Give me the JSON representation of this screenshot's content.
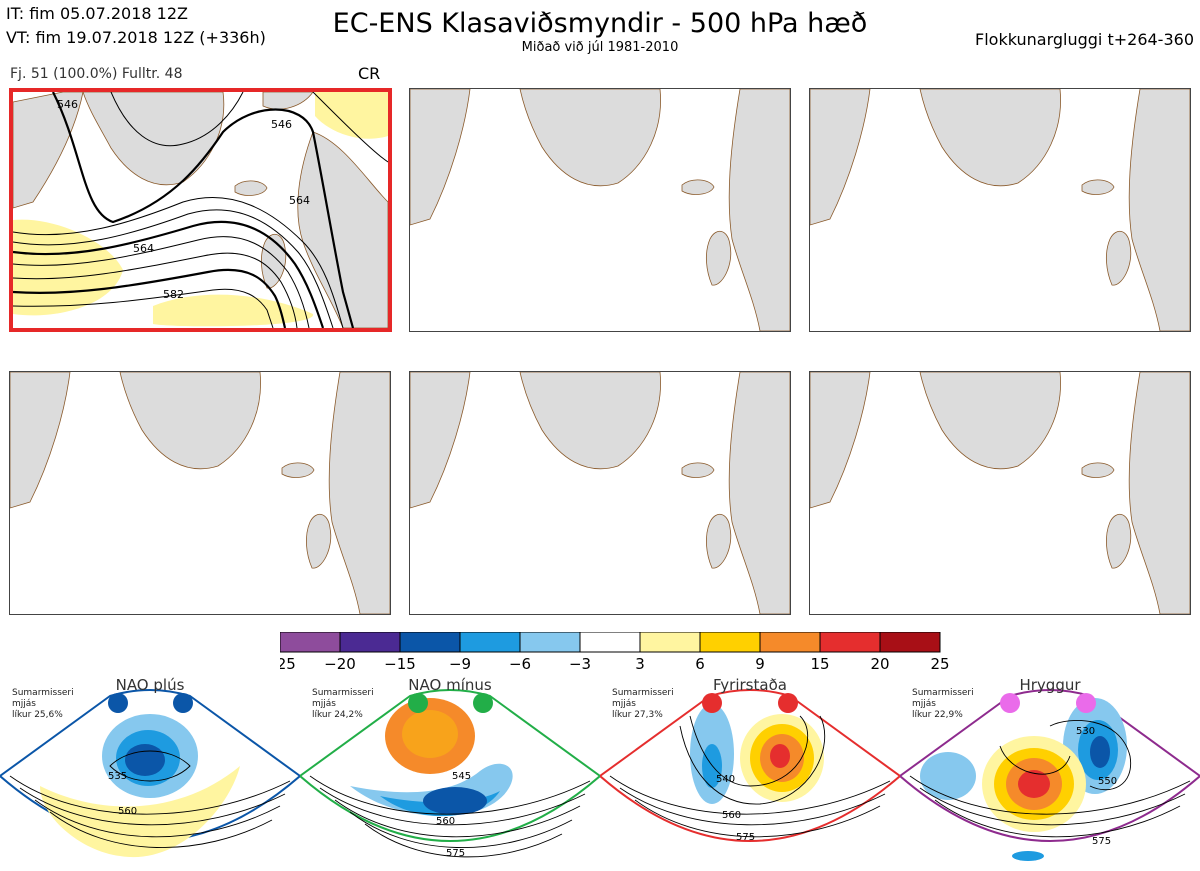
{
  "header": {
    "it_text": "IT: fim 05.07.2018 12Z",
    "vt_text": "VT: fim 19.07.2018 12Z  (+336h)",
    "title": "EC-ENS Klasaviðsmyndir - 500 hPa hæð",
    "subtitle": "Miðað við júl 1981-2010",
    "window_label": "Flokkunargluggi t+264-360"
  },
  "panel1": {
    "members_text": "Fj. 51 (100.0%)   Fulltr. 48",
    "cluster_label": "CR",
    "contour_labels": [
      "546",
      "564",
      "582",
      "546",
      "564"
    ]
  },
  "colors": {
    "land": "#dcdcdc",
    "coast": "#8a5a2b",
    "selected_frame": "#e62828",
    "scale": [
      "#8e4c9c",
      "#4b2a93",
      "#0b56a8",
      "#1e9be0",
      "#86c8ee",
      "#ffffff",
      "#fff5a0",
      "#ffd000",
      "#f58a2a",
      "#e52e2e",
      "#a80f16"
    ]
  },
  "colorbar": {
    "ticks": [
      "−25",
      "−20",
      "−15",
      "−9",
      "−6",
      "−3",
      "3",
      "6",
      "9",
      "15",
      "20",
      "25"
    ]
  },
  "regimes": [
    {
      "name": "NAO plús",
      "season": "Sumarmisseri",
      "type": "mjjás",
      "prob": "líkur 25,6%",
      "color": "#0b56a8",
      "labels": [
        "535",
        "560"
      ]
    },
    {
      "name": "NAO mínus",
      "season": "Sumarmisseri",
      "type": "mjjás",
      "prob": "líkur 24,2%",
      "color": "#22ae48",
      "labels": [
        "545",
        "560",
        "575"
      ]
    },
    {
      "name": "Fyrirstaða",
      "season": "Sumarmisseri",
      "type": "mjjás",
      "prob": "líkur 27,3%",
      "color": "#e52e2e",
      "labels": [
        "540",
        "560",
        "575"
      ]
    },
    {
      "name": "Hryggur",
      "season": "Sumarmisseri",
      "type": "mjjás",
      "prob": "líkur 22,9%",
      "color": "#8e2b8e",
      "labels": [
        "530",
        "550",
        "575"
      ]
    }
  ],
  "chart_data": {
    "type": "heatmap",
    "title": "EC-ENS Klasaviðsmyndir - 500 hPa hæð",
    "subtitle": "Miðað við júl 1981-2010",
    "colorbar_ticks": [
      -25,
      -20,
      -15,
      -9,
      -6,
      -3,
      3,
      6,
      9,
      15,
      20,
      25
    ],
    "cluster": {
      "label": "CR",
      "members": 51,
      "percent": 100.0,
      "representative": 48
    },
    "contour_labels_dam": [
      546,
      564,
      582
    ],
    "regimes": [
      {
        "name": "NAO plús",
        "probability": 25.6
      },
      {
        "name": "NAO mínus",
        "probability": 24.2
      },
      {
        "name": "Fyrirstaða",
        "probability": 27.3
      },
      {
        "name": "Hryggur",
        "probability": 22.9
      }
    ]
  }
}
